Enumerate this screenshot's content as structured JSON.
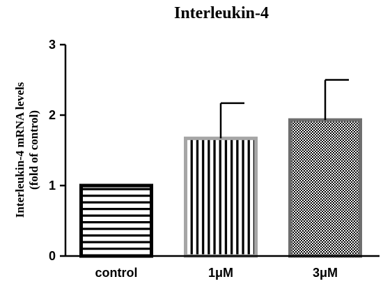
{
  "chart_data": {
    "type": "bar",
    "title": "Interleukin-4",
    "ylabel_lines": [
      "Interleukin-4 mRNA levels",
      "(fold of control)"
    ],
    "xlabel": "",
    "categories": [
      "control",
      "1μM",
      "3μM"
    ],
    "values": [
      1.0,
      1.67,
      1.93
    ],
    "errors": [
      0,
      0.5,
      0.57
    ],
    "ylim": [
      0,
      3
    ],
    "yticks": [
      "0",
      "1",
      "2",
      "3"
    ],
    "grid": false,
    "legend": "none",
    "bars": [
      {
        "pattern": "horizontal-stripes",
        "border_color": "#000000",
        "fill_color": "#000000"
      },
      {
        "pattern": "vertical-stripes",
        "border_color": "#a6a6a6",
        "fill_color": "#000000"
      },
      {
        "pattern": "checker",
        "border_color": "#6e6e6e",
        "fill_color": "#000000"
      }
    ]
  }
}
